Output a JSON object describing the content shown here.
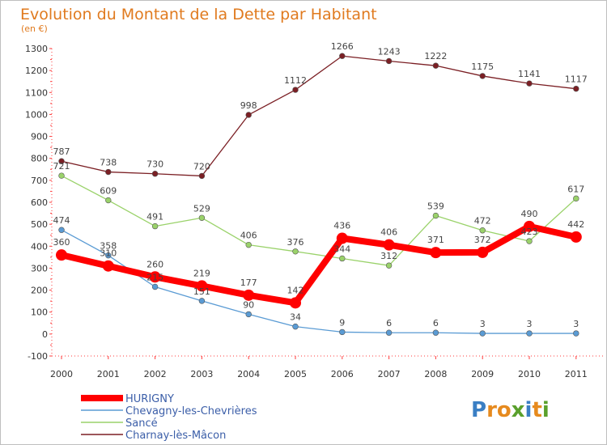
{
  "chart_data": {
    "type": "line",
    "title": "Evolution du Montant de la Dette par Habitant",
    "subtitle": "(en €)",
    "x": [
      "2000",
      "2001",
      "2002",
      "2003",
      "2004",
      "2005",
      "2006",
      "2007",
      "2008",
      "2009",
      "2010",
      "2011"
    ],
    "yticks": [
      "1300",
      "1200",
      "1100",
      "1000",
      "900",
      "800",
      "700",
      "600",
      "500",
      "400",
      "300",
      "200",
      "100",
      "0",
      "-100"
    ],
    "ylim": [
      -100,
      1300
    ],
    "grid": false,
    "legend_position": "bottom-left",
    "series": [
      {
        "name": "Charnay-lès-Mâcon",
        "color": "#7b1f24",
        "values": [
          787,
          738,
          730,
          720,
          998,
          1112,
          1266,
          1243,
          1222,
          1175,
          1141,
          1117
        ]
      },
      {
        "name": "Sancé",
        "color": "#9ad26a",
        "values": [
          721,
          609,
          491,
          529,
          406,
          376,
          344,
          312,
          539,
          472,
          423,
          617
        ]
      },
      {
        "name": "Chevagny-les-Chevrières",
        "color": "#5a9bd4",
        "values": [
          474,
          358,
          215,
          151,
          90,
          34,
          9,
          6,
          6,
          3,
          3,
          3
        ]
      },
      {
        "name": "HURIGNY",
        "color": "#ff0000",
        "values": [
          360,
          310,
          260,
          219,
          177,
          142,
          436,
          406,
          371,
          372,
          490,
          442
        ]
      }
    ],
    "legend": [
      {
        "name": "HURIGNY",
        "color": "#ff0000"
      },
      {
        "name": "Chevagny-les-Chevrières",
        "color": "#5a9bd4"
      },
      {
        "name": "Sancé",
        "color": "#9ad26a"
      },
      {
        "name": "Charnay-lès-Mâcon",
        "color": "#7b1f24"
      }
    ],
    "legend_text_color": "#3b5ea8"
  },
  "brand": {
    "letters": [
      "P",
      "r",
      "o",
      "x",
      "i",
      "t",
      "i"
    ],
    "colors": [
      "#3a7fc4",
      "#e68a1e",
      "#e68a1e",
      "#5aa02c",
      "#3a7fc4",
      "#e68a1e",
      "#5aa02c"
    ]
  }
}
